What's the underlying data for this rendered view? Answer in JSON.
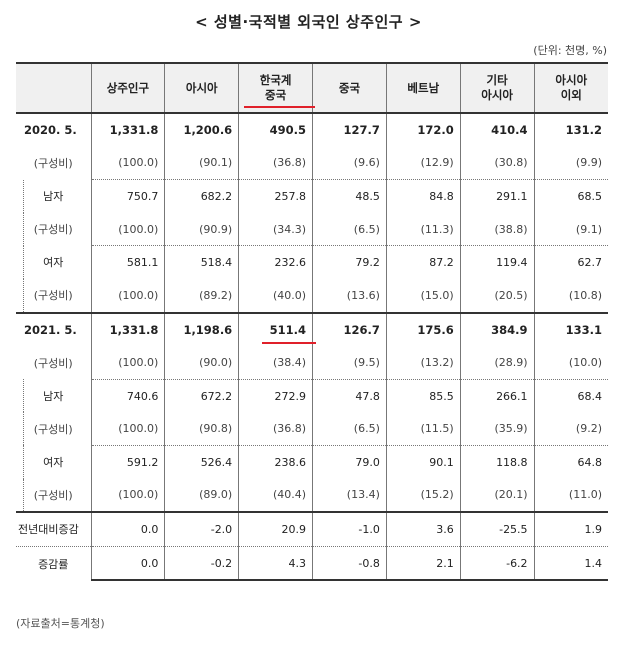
{
  "title": "< 성별·국적별 외국인 상주인구 >",
  "unit": "(단위: 천명, %)",
  "columns": [
    "",
    "상주인구",
    "아시아",
    "한국계\n중국",
    "중국",
    "베트남",
    "기타\n아시아",
    "아시아\n이외"
  ],
  "sections": [
    {
      "rows": [
        {
          "label": "2020. 5.",
          "kind": "year",
          "values": [
            "1,331.8",
            "1,200.6",
            "490.5",
            "127.7",
            "172.0",
            "410.4",
            "131.2"
          ]
        },
        {
          "label": "(구성비)",
          "kind": "ratio",
          "values": [
            "(100.0)",
            "(90.1)",
            "(36.8)",
            "(9.6)",
            "(12.9)",
            "(30.8)",
            "(9.9)"
          ]
        },
        {
          "label": "남자",
          "kind": "sub",
          "values": [
            "750.7",
            "682.2",
            "257.8",
            "48.5",
            "84.8",
            "291.1",
            "68.5"
          ]
        },
        {
          "label": "(구성비)",
          "kind": "sub-ratio",
          "values": [
            "(100.0)",
            "(90.9)",
            "(34.3)",
            "(6.5)",
            "(11.3)",
            "(38.8)",
            "(9.1)"
          ]
        },
        {
          "label": "여자",
          "kind": "sub",
          "values": [
            "581.1",
            "518.4",
            "232.6",
            "79.2",
            "87.2",
            "119.4",
            "62.7"
          ]
        },
        {
          "label": "(구성비)",
          "kind": "sub-ratio",
          "values": [
            "(100.0)",
            "(89.2)",
            "(40.0)",
            "(13.6)",
            "(15.0)",
            "(20.5)",
            "(10.8)"
          ]
        }
      ]
    },
    {
      "rows": [
        {
          "label": "2021. 5.",
          "kind": "year",
          "values": [
            "1,331.8",
            "1,198.6",
            "511.4",
            "126.7",
            "175.6",
            "384.9",
            "133.1"
          ]
        },
        {
          "label": "(구성비)",
          "kind": "ratio",
          "values": [
            "(100.0)",
            "(90.0)",
            "(38.4)",
            "(9.5)",
            "(13.2)",
            "(28.9)",
            "(10.0)"
          ]
        },
        {
          "label": "남자",
          "kind": "sub",
          "values": [
            "740.6",
            "672.2",
            "272.9",
            "47.8",
            "85.5",
            "266.1",
            "68.4"
          ]
        },
        {
          "label": "(구성비)",
          "kind": "sub-ratio",
          "values": [
            "(100.0)",
            "(90.8)",
            "(36.8)",
            "(6.5)",
            "(11.5)",
            "(35.9)",
            "(9.2)"
          ]
        },
        {
          "label": "여자",
          "kind": "sub",
          "values": [
            "591.2",
            "526.4",
            "238.6",
            "79.0",
            "90.1",
            "118.8",
            "64.8"
          ]
        },
        {
          "label": "(구성비)",
          "kind": "sub-ratio",
          "values": [
            "(100.0)",
            "(89.0)",
            "(40.4)",
            "(13.4)",
            "(15.2)",
            "(20.1)",
            "(11.0)"
          ]
        }
      ]
    },
    {
      "rows": [
        {
          "label": "전년대비증감",
          "kind": "cmp",
          "values": [
            "0.0",
            "-2.0",
            "20.9",
            "-1.0",
            "3.6",
            "-25.5",
            "1.9"
          ]
        },
        {
          "label": "증감률",
          "kind": "rate",
          "values": [
            "0.0",
            "-0.2",
            "4.3",
            "-0.8",
            "2.1",
            "-6.2",
            "1.4"
          ]
        }
      ]
    }
  ],
  "source": "(자료출처=통계청)",
  "colors": {
    "highlight": "#e0202a",
    "header_bg": "#f0f0f0"
  }
}
